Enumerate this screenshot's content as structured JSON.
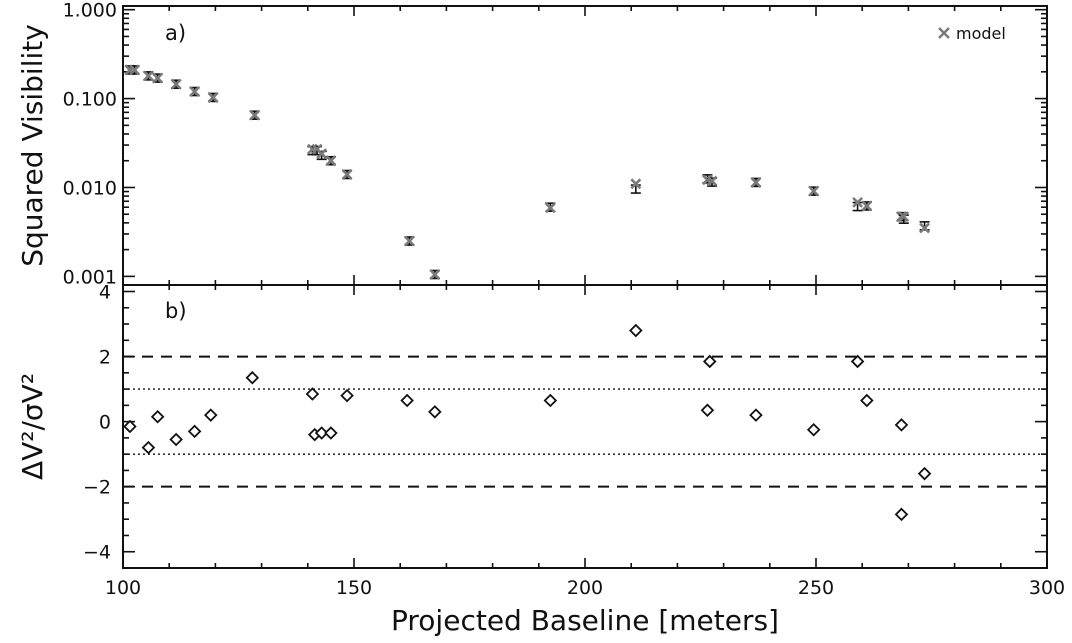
{
  "chart_data": [
    {
      "type": "scatter",
      "panel_label": "a)",
      "ylabel": "Squared Visibility",
      "yscale": "log",
      "ylim": [
        0.0008,
        1.1
      ],
      "xlim": [
        100,
        300
      ],
      "yticks": [
        0.001,
        0.01,
        0.1,
        1.0
      ],
      "ytick_labels": [
        "0.001",
        "0.010",
        "0.100",
        "1.000"
      ],
      "legend": {
        "label": "model",
        "placement": "top-right"
      },
      "series": [
        {
          "x": [
            101.5,
            102.5,
            105.5,
            107.5,
            111.5,
            115.5,
            119.5,
            128.5,
            141.0,
            142.0,
            143.0,
            145.0,
            148.5,
            162.0,
            167.5,
            192.5,
            211.0,
            226.5,
            227.5,
            237.0,
            249.5,
            259.0,
            261.0,
            268.5,
            269.0,
            273.5
          ],
          "data_y": [
            0.21,
            0.21,
            0.18,
            0.17,
            0.145,
            0.12,
            0.103,
            0.065,
            0.026,
            0.026,
            0.023,
            0.02,
            0.014,
            0.0025,
            0.00105,
            0.006,
            0.0096,
            0.0125,
            0.0115,
            0.0114,
            0.0091,
            0.0061,
            0.0062,
            0.0047,
            0.0044,
            0.0037
          ],
          "model_y": [
            0.21,
            0.21,
            0.18,
            0.17,
            0.145,
            0.12,
            0.103,
            0.065,
            0.027,
            0.027,
            0.024,
            0.02,
            0.014,
            0.0025,
            0.00105,
            0.0059,
            0.011,
            0.0122,
            0.0118,
            0.0114,
            0.0091,
            0.0068,
            0.0062,
            0.0047,
            0.0047,
            0.0035
          ]
        }
      ]
    },
    {
      "type": "scatter",
      "panel_label": "b)",
      "ylabel": "ΔV²/σV²",
      "xlabel": "Projected Baseline [meters]",
      "ylim": [
        -4.5,
        4.2
      ],
      "xlim": [
        100,
        300
      ],
      "yticks": [
        -4,
        -2,
        0,
        2,
        4
      ],
      "ytick_labels": [
        "−4",
        "−2",
        "0",
        "2",
        "4"
      ],
      "xticks": [
        100,
        150,
        200,
        250,
        300
      ],
      "xtick_labels": [
        "100",
        "150",
        "200",
        "250",
        "300"
      ],
      "reference_lines": {
        "dashed": [
          -2,
          2
        ],
        "dotted": [
          -1,
          1
        ]
      },
      "series": [
        {
          "x": [
            101.5,
            105.5,
            107.5,
            111.5,
            115.5,
            119.0,
            128.0,
            141.0,
            141.5,
            143.0,
            145.0,
            148.5,
            161.5,
            167.5,
            192.5,
            211.0,
            226.5,
            227.0,
            237.0,
            249.5,
            259.0,
            261.0,
            268.5,
            268.5,
            273.5
          ],
          "y": [
            -0.15,
            -0.8,
            0.15,
            -0.55,
            -0.3,
            0.2,
            1.35,
            0.85,
            -0.4,
            -0.35,
            -0.35,
            0.8,
            0.65,
            0.3,
            0.65,
            2.8,
            0.35,
            1.85,
            0.2,
            -0.25,
            1.85,
            0.65,
            -0.1,
            -2.85,
            -1.6
          ]
        }
      ]
    }
  ]
}
